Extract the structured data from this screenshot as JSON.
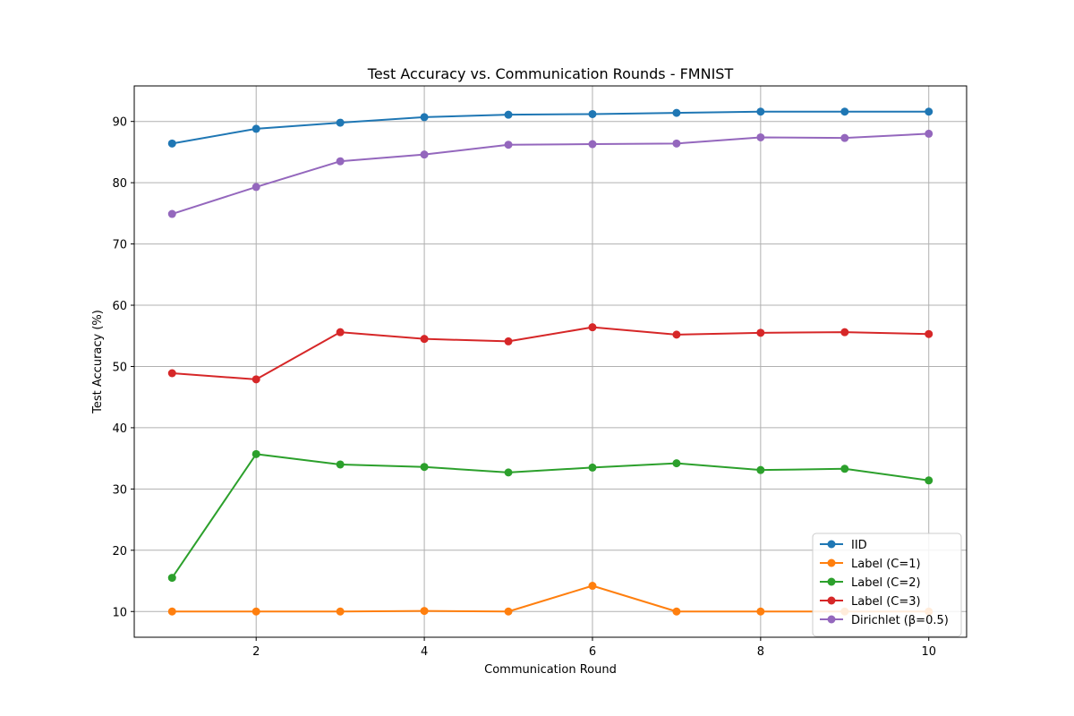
{
  "chart_data": {
    "type": "line",
    "title": "Test Accuracy vs. Communication Rounds - FMNIST",
    "xlabel": "Communication Round",
    "ylabel": "Test Accuracy (%)",
    "x": [
      1,
      2,
      3,
      4,
      5,
      6,
      7,
      8,
      9,
      10
    ],
    "xlim": [
      0.55,
      10.45
    ],
    "ylim": [
      5.8,
      95.8
    ],
    "xticks": [
      2,
      4,
      6,
      8,
      10
    ],
    "yticks": [
      10,
      20,
      30,
      40,
      50,
      60,
      70,
      80,
      90
    ],
    "grid": true,
    "legend_position": "lower-right",
    "series": [
      {
        "name": "IID",
        "color": "#1f77b4",
        "values": [
          86.4,
          88.8,
          89.8,
          90.7,
          91.1,
          91.2,
          91.4,
          91.6,
          91.6,
          91.6
        ]
      },
      {
        "name": "Label (C=1)",
        "color": "#ff7f0e",
        "values": [
          10.0,
          10.0,
          10.0,
          10.1,
          10.0,
          14.2,
          10.0,
          10.0,
          10.0,
          10.0
        ]
      },
      {
        "name": "Label (C=2)",
        "color": "#2ca02c",
        "values": [
          15.5,
          35.7,
          34.0,
          33.6,
          32.7,
          33.5,
          34.2,
          33.1,
          33.3,
          31.4
        ]
      },
      {
        "name": "Label (C=3)",
        "color": "#d62728",
        "values": [
          48.9,
          47.9,
          55.6,
          54.5,
          54.1,
          56.4,
          55.2,
          55.5,
          55.6,
          55.3
        ]
      },
      {
        "name": "Dirichlet (β=0.5)",
        "color": "#9467bd",
        "values": [
          74.9,
          79.3,
          83.5,
          84.6,
          86.2,
          86.3,
          86.4,
          87.4,
          87.3,
          88.0
        ]
      }
    ]
  }
}
